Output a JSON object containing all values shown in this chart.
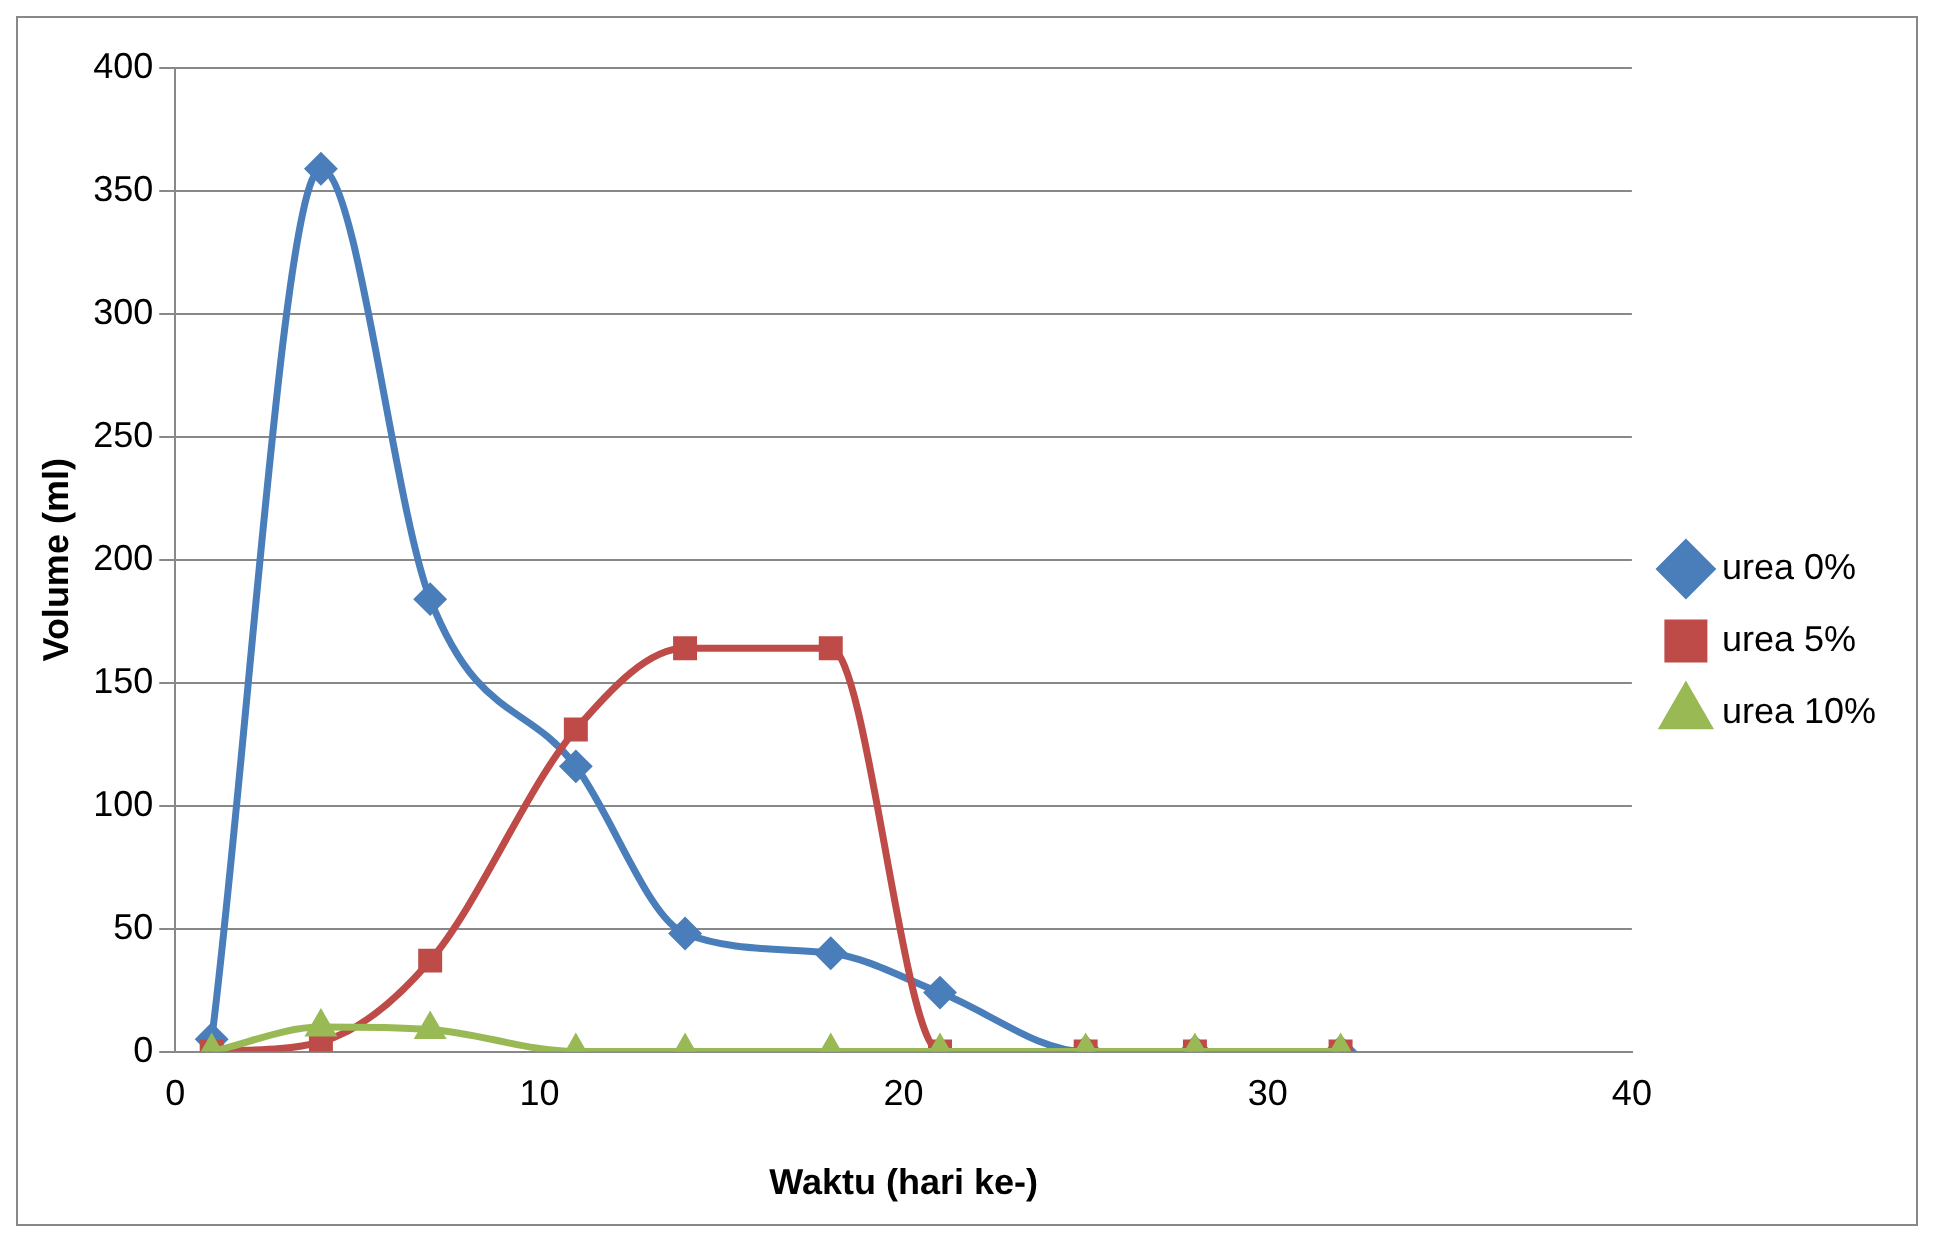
{
  "chart_data": {
    "type": "line",
    "xlabel": "Waktu (hari ke-)",
    "ylabel": "Volume (ml)",
    "xlim": [
      0,
      40
    ],
    "xticks": [
      0,
      10,
      20,
      30,
      40
    ],
    "ylim": [
      0,
      400
    ],
    "yticks": [
      0,
      50,
      100,
      150,
      200,
      250,
      300,
      350,
      400
    ],
    "grid": "y",
    "legend": "right",
    "series": [
      {
        "name": "urea 0%",
        "color": "#4a7ebb",
        "marker": "diamond",
        "x": [
          1,
          4,
          7,
          11,
          14,
          18,
          21,
          25,
          28,
          32
        ],
        "values": [
          5,
          359,
          184,
          116,
          48,
          40,
          24,
          0,
          0,
          0
        ]
      },
      {
        "name": "urea 5%",
        "color": "#be4b48",
        "marker": "square",
        "x": [
          1,
          4,
          7,
          11,
          14,
          18,
          21,
          25,
          28,
          32
        ],
        "values": [
          0,
          4,
          37,
          131,
          164,
          164,
          0,
          0,
          0,
          0
        ]
      },
      {
        "name": "urea 10%",
        "color": "#98b954",
        "marker": "triangle",
        "x": [
          1,
          4,
          7,
          11,
          14,
          18,
          21,
          25,
          28,
          32
        ],
        "values": [
          0,
          10,
          9,
          0,
          0,
          0,
          0,
          0,
          0,
          0
        ]
      }
    ]
  }
}
